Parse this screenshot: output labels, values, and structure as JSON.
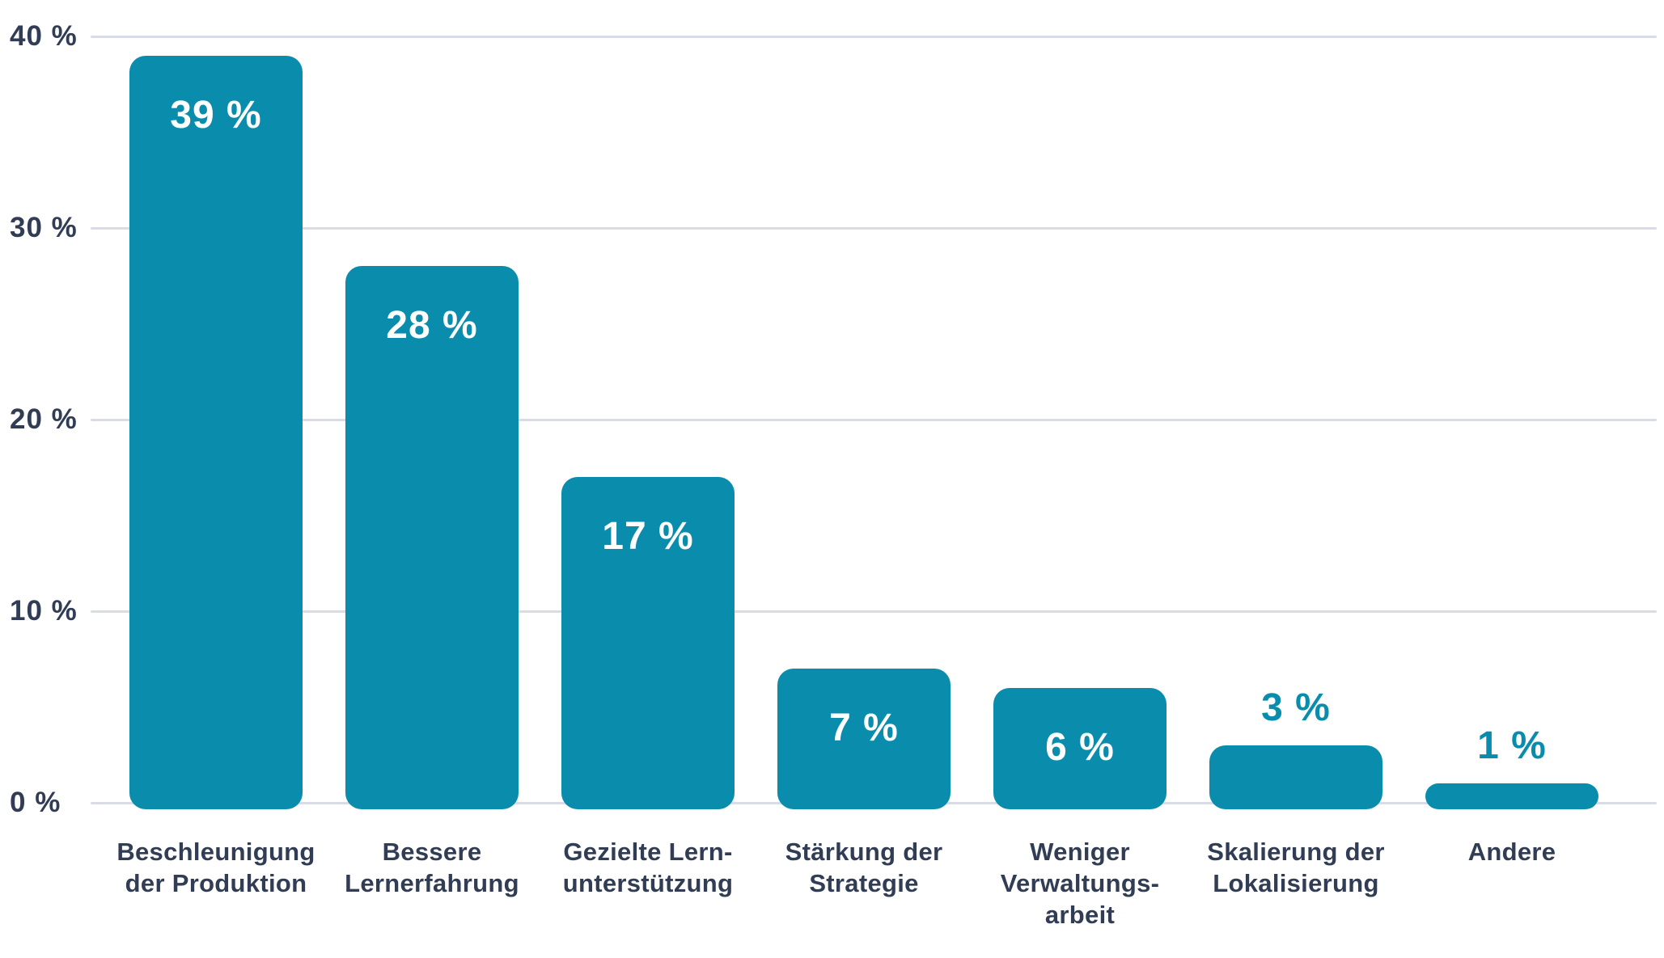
{
  "chart_data": {
    "type": "bar",
    "title": "",
    "xlabel": "",
    "ylabel": "",
    "categories": [
      "Beschleunigung der Produktion",
      "Bessere Lernerfahrung",
      "Gezielte Lern-unterstützung",
      "Stärkung der Strategie",
      "Weniger Verwaltungs-arbeit",
      "Skalierung der Lokalisierung",
      "Andere"
    ],
    "category_lines": [
      [
        "Beschleunigung",
        "der Produktion"
      ],
      [
        "Bessere",
        "Lernerfahrung"
      ],
      [
        "Gezielte Lern-",
        "unterstützung"
      ],
      [
        "Stärkung der",
        "Strategie"
      ],
      [
        "Weniger",
        "Verwaltungs-",
        "arbeit"
      ],
      [
        "Skalierung der",
        "Lokalisierung"
      ],
      [
        "Andere"
      ]
    ],
    "values": [
      39,
      28,
      17,
      7,
      6,
      3,
      1
    ],
    "value_labels": [
      "39 %",
      "28 %",
      "17 %",
      "7 %",
      "6 %",
      "3 %",
      "1 %"
    ],
    "ylim": [
      0,
      40
    ],
    "yticks": [
      0,
      10,
      20,
      30,
      40
    ],
    "ytick_labels": [
      "0 %",
      "10 %",
      "20 %",
      "30 %",
      "40 %"
    ],
    "grid": true,
    "legend": "none",
    "value_label_placement": "inside bars for large values, above bars for 3 % and 1 %",
    "colors": {
      "bar": "#0a8dac",
      "value_label_inside": "#ffffff",
      "value_label_outside": "#0a8dac",
      "axis_text": "#313c55",
      "gridline": "#d9dce6",
      "background": "#ffffff"
    }
  }
}
